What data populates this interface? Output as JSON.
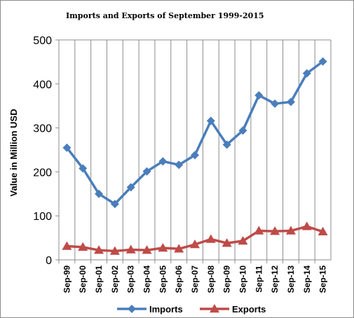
{
  "chart_data": {
    "type": "line",
    "title": "Imports and Exports of September 1999-2015",
    "ylabel": "Value in  Million  USD",
    "xlabel": "",
    "ylim": [
      0,
      500
    ],
    "yticks": [
      0,
      100,
      200,
      300,
      400,
      500
    ],
    "grid": "vertical",
    "legend_position": "bottom",
    "categories": [
      "Sep-99",
      "Sep-00",
      "Sep-01",
      "Sep-02",
      "Sep-03",
      "Sep-04",
      "Sep-05",
      "Sep-06",
      "Sep-07",
      "Sep-08",
      "Sep-09",
      "Sep-10",
      "Sep-11",
      "Sep-12",
      "Sep-13",
      "Sep-14",
      "Sep-15"
    ],
    "series": [
      {
        "name": "Imports",
        "color": "#4a7ebb",
        "marker": "diamond",
        "values": [
          255,
          208,
          150,
          127,
          165,
          201,
          224,
          216,
          238,
          316,
          262,
          294,
          374,
          355,
          359,
          424,
          451
        ]
      },
      {
        "name": "Exports",
        "color": "#be4b48",
        "marker": "triangle",
        "values": [
          31,
          29,
          22,
          20,
          23,
          22,
          27,
          25,
          35,
          47,
          38,
          43,
          66,
          65,
          66,
          76,
          64
        ]
      }
    ]
  }
}
